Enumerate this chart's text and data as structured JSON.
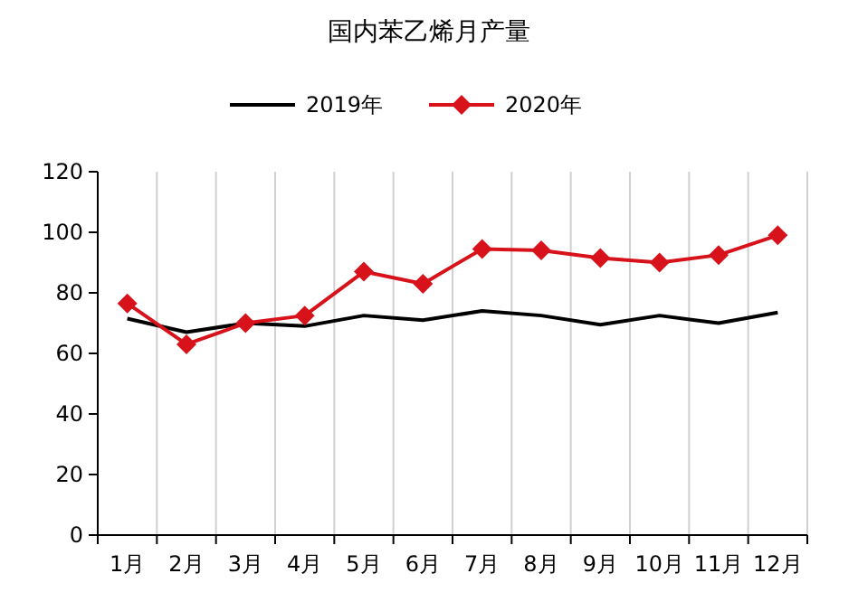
{
  "chart_data": {
    "type": "line",
    "title": "国内苯乙烯月产量",
    "categories": [
      "1月",
      "2月",
      "3月",
      "4月",
      "5月",
      "6月",
      "7月",
      "8月",
      "9月",
      "10月",
      "11月",
      "12月"
    ],
    "series": [
      {
        "name": "2019年",
        "color": "#000000",
        "marker": "none",
        "values": [
          71.5,
          67,
          70,
          69,
          72.5,
          71,
          74,
          72.5,
          69.5,
          72.5,
          70,
          73.5
        ]
      },
      {
        "name": "2020年",
        "color": "#d7121b",
        "marker": "diamond",
        "values": [
          76.5,
          63,
          70,
          72.5,
          87,
          83,
          94.5,
          94,
          91.5,
          90,
          92.5,
          99
        ]
      }
    ],
    "ylim": [
      0,
      120
    ],
    "yticks": [
      0,
      20,
      40,
      60,
      80,
      100,
      120
    ],
    "grid": "x",
    "legend": "top",
    "line_style": "solid"
  }
}
